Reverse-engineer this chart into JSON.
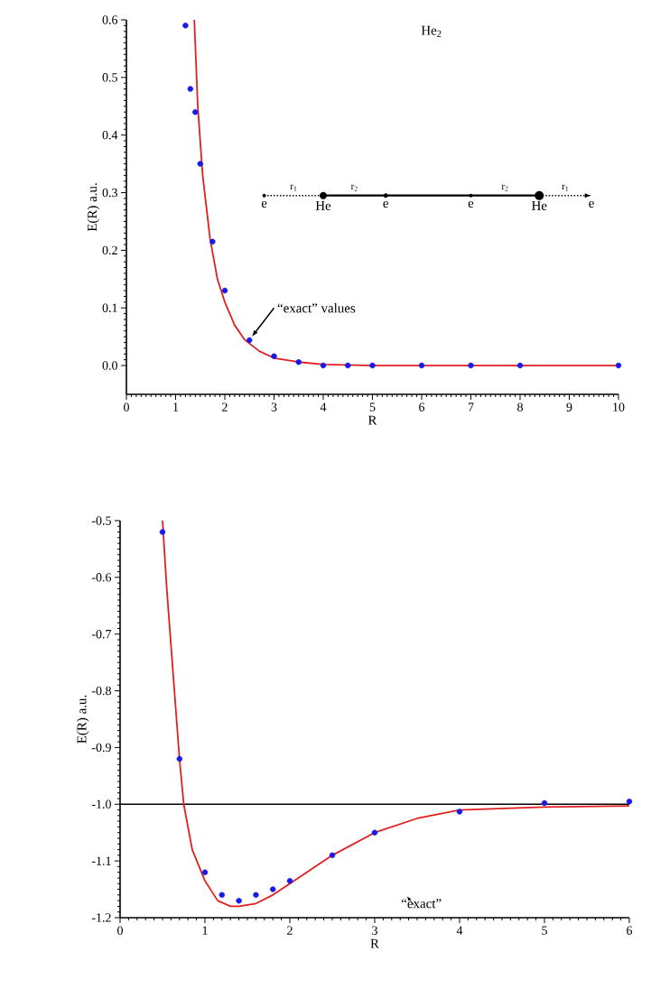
{
  "chart_data": [
    {
      "type": "scatter",
      "xlabel": "R",
      "ylabel": "E(R) a.u.",
      "xlim": [
        0,
        10
      ],
      "ylim": [
        -0.05,
        0.6
      ],
      "xticks": [
        0,
        1,
        2,
        3,
        4,
        5,
        6,
        7,
        8,
        9,
        10
      ],
      "yticks": [
        {
          "value": 0,
          "label": "0.0"
        },
        {
          "value": 0.1,
          "label": "0.1"
        },
        {
          "value": 0.2,
          "label": "0.2"
        },
        {
          "value": 0.3,
          "label": "0.3"
        },
        {
          "value": 0.4,
          "label": "0.4"
        },
        {
          "value": 0.5,
          "label": "0.5"
        },
        {
          "value": 0.6,
          "label": "0.6"
        }
      ],
      "grid": false,
      "series": [
        {
          "marker": "circle",
          "color": "#1a1ae6",
          "x": [
            1.2,
            1.3,
            1.4,
            1.5,
            1.75,
            2,
            2.5,
            3,
            3.5,
            4,
            4.5,
            5,
            6,
            7,
            8,
            10
          ],
          "values": [
            0.59,
            0.48,
            0.44,
            0.35,
            0.215,
            0.13,
            0.044,
            0.016,
            0.006,
            0,
            0,
            0,
            0,
            0,
            0,
            0
          ]
        },
        {
          "type": "line",
          "marker": "none",
          "line_style": "solid",
          "color": "#e01f1f",
          "x": [
            1.38,
            1.45,
            1.55,
            1.7,
            1.85,
            2.0,
            2.2,
            2.4,
            2.7,
            3.0,
            3.5,
            4,
            5,
            10
          ],
          "values": [
            0.6,
            0.45,
            0.33,
            0.22,
            0.15,
            0.11,
            0.07,
            0.045,
            0.025,
            0.013,
            0.006,
            0.002,
            0,
            0
          ]
        }
      ],
      "annotations": [
        "He$_{2}$",
        "“exact” values",
        "e",
        "r$_{1}$",
        "He",
        "r$_{2}$",
        "e",
        "e",
        "r$_{2}$",
        "He",
        "r$_{1}$",
        "e"
      ]
    },
    {
      "type": "scatter",
      "xlabel": "R",
      "ylabel": "E(R) a.u.",
      "xlim": [
        0,
        6
      ],
      "ylim": [
        -1.2,
        -0.5
      ],
      "xticks": [
        0,
        1,
        2,
        3,
        4,
        5,
        6
      ],
      "yticks": [
        {
          "value": -1.2,
          "label": "-1.2"
        },
        {
          "value": -1.1,
          "label": "-1.1"
        },
        {
          "value": -1.0,
          "label": "-1.0"
        },
        {
          "value": -0.9,
          "label": "-0.9"
        },
        {
          "value": -0.8,
          "label": "-0.8"
        },
        {
          "value": -0.7,
          "label": "-0.7"
        },
        {
          "value": -0.6,
          "label": "-0.6"
        },
        {
          "value": -0.5,
          "label": "-0.5"
        }
      ],
      "grid": false,
      "ref_lines": [
        {
          "axis": "y",
          "value": -1.0,
          "color": "#000000",
          "line_style": "solid"
        }
      ],
      "series": [
        {
          "marker": "circle",
          "color": "#1a1ae6",
          "x": [
            0.5,
            0.7,
            1.0,
            1.2,
            1.4,
            1.6,
            1.8,
            2.0,
            2.5,
            3.0,
            4.0,
            5.0,
            6.0
          ],
          "values": [
            -0.52,
            -0.92,
            -1.12,
            -1.16,
            -1.17,
            -1.16,
            -1.15,
            -1.135,
            -1.09,
            -1.05,
            -1.013,
            -0.998,
            -0.995
          ]
        },
        {
          "type": "line",
          "marker": "none",
          "line_style": "solid",
          "color": "#e01f1f",
          "x": [
            0.5,
            0.55,
            0.6,
            0.65,
            0.7,
            0.75,
            0.85,
            1.0,
            1.15,
            1.3,
            1.4,
            1.6,
            1.8,
            2.0,
            2.5,
            3.0,
            3.5,
            4.0,
            5.0,
            6.0
          ],
          "values": [
            -0.5,
            -0.62,
            -0.72,
            -0.82,
            -0.92,
            -1.0,
            -1.08,
            -1.135,
            -1.17,
            -1.18,
            -1.18,
            -1.175,
            -1.16,
            -1.14,
            -1.09,
            -1.05,
            -1.025,
            -1.01,
            -1.005,
            -1.003
          ]
        }
      ],
      "annotations": [
        "“exact”"
      ]
    }
  ]
}
